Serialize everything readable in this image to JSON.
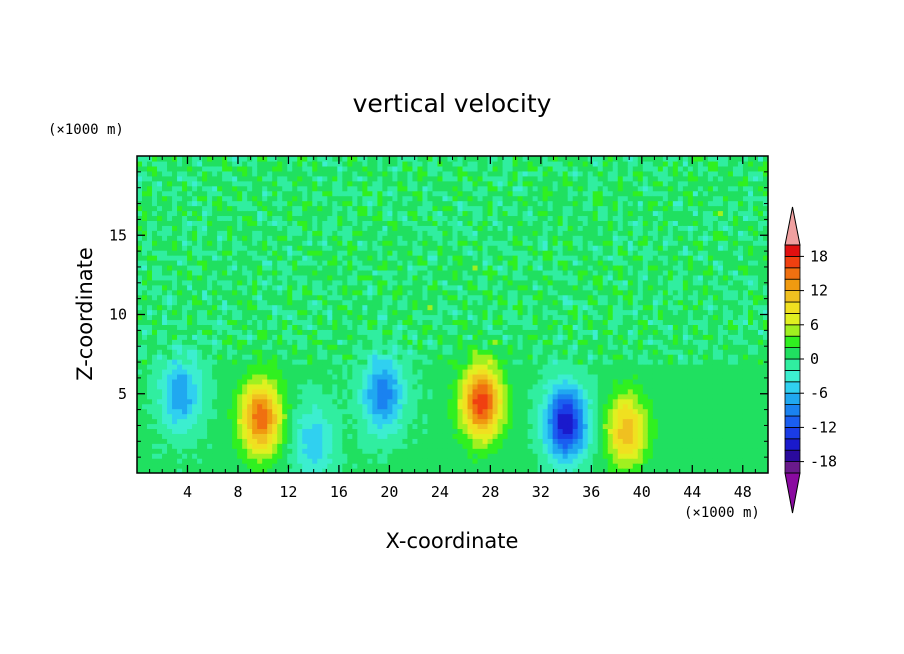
{
  "chart_data": {
    "type": "heatmap",
    "title": "vertical velocity",
    "xlabel": "X-coordinate",
    "ylabel": "Z-coordinate",
    "x_unit": "(×1000 m)",
    "y_unit": "(×1000 m)",
    "xlim": [
      0,
      50
    ],
    "ylim": [
      0,
      20
    ],
    "x_ticks": [
      4,
      8,
      12,
      16,
      20,
      24,
      28,
      32,
      36,
      40,
      44,
      48
    ],
    "y_ticks": [
      5,
      10,
      15
    ],
    "colorbar": {
      "levels": [
        -20,
        -18,
        -16,
        -14,
        -12,
        -10,
        -8,
        -6,
        -4,
        -2,
        0,
        2,
        4,
        6,
        8,
        10,
        12,
        14,
        16,
        18,
        20
      ],
      "tick_labels": [
        18,
        12,
        6,
        0,
        -6,
        -12,
        -18
      ],
      "colors": [
        "#6a1a8c",
        "#2a0a9c",
        "#1a1acc",
        "#1a3ce6",
        "#1a5ef0",
        "#1a82f0",
        "#20a8f0",
        "#30d0f0",
        "#3ceed0",
        "#30eea0",
        "#20e060",
        "#30f020",
        "#a0f020",
        "#e0f020",
        "#f0e020",
        "#f0c020",
        "#f09a10",
        "#f07010",
        "#f04010",
        "#e01010"
      ],
      "under_color": "#8a0aa0",
      "over_color": "#f0a0a0"
    },
    "features": [
      {
        "x": 9.8,
        "z": 3.5,
        "w_peak": 15,
        "note": "updraft"
      },
      {
        "x": 27.3,
        "z": 4.5,
        "w_peak": 17,
        "note": "updraft"
      },
      {
        "x": 38.8,
        "z": 2.7,
        "w_peak": 11,
        "note": "updraft"
      },
      {
        "x": 34.0,
        "z": 3.2,
        "w_peak": -16,
        "note": "downdraft"
      },
      {
        "x": 19.5,
        "z": 5.0,
        "w_peak": -10,
        "note": "downdraft"
      },
      {
        "x": 3.5,
        "z": 5.0,
        "w_peak": -8,
        "note": "downdraft"
      },
      {
        "x": 14.0,
        "z": 2.0,
        "w_peak": -6,
        "note": "downdraft"
      }
    ]
  }
}
